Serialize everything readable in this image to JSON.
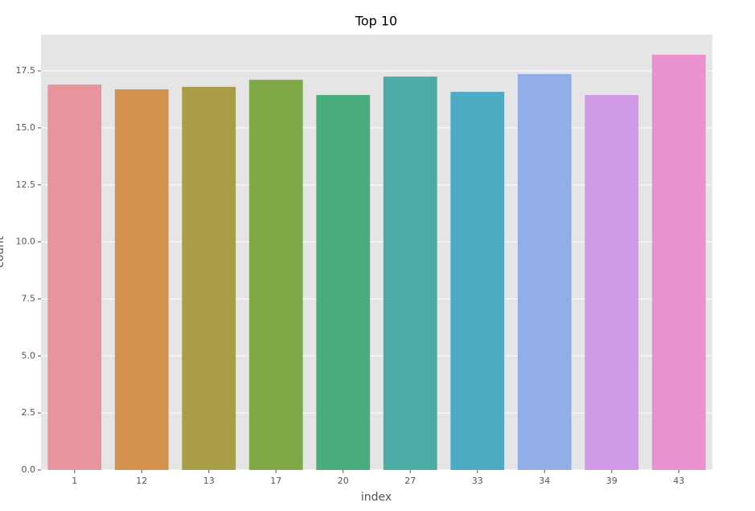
{
  "chart_data": {
    "type": "bar",
    "title": "Top 10",
    "xlabel": "index",
    "ylabel": "count",
    "categories": [
      "1",
      "12",
      "13",
      "17",
      "20",
      "27",
      "33",
      "34",
      "39",
      "43"
    ],
    "values": [
      16.9,
      16.69,
      16.8,
      17.11,
      16.44,
      17.25,
      16.58,
      17.36,
      16.44,
      18.21
    ],
    "colors": [
      "#e8949f",
      "#d5924f",
      "#aa9d48",
      "#7fa947",
      "#48ac7c",
      "#4aaca5",
      "#4dabc3",
      "#92aee6",
      "#d09ae6",
      "#ea91cf"
    ],
    "ylim": [
      0,
      19.09
    ],
    "yticks": [
      {
        "value": 0,
        "label": "0.0"
      },
      2.5,
      {
        "value": 5,
        "label": "5.0"
      },
      7.5,
      {
        "value": 10,
        "label": "10.0"
      },
      12.5,
      {
        "value": 15,
        "label": "15.0"
      },
      17.5
    ],
    "grid": true
  }
}
